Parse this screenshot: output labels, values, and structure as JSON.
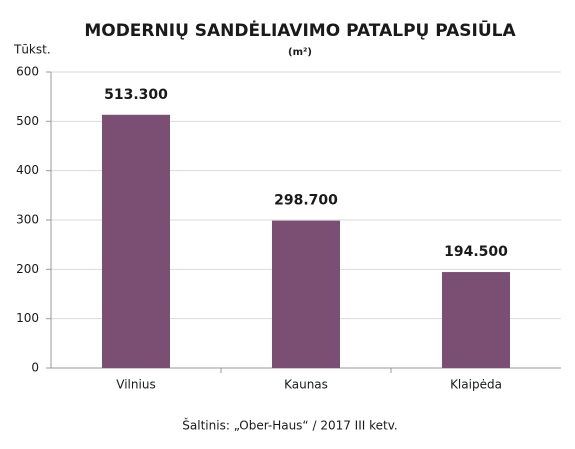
{
  "chart_data": {
    "type": "bar",
    "title": "MODERNIŲ SANDĖLIAVIMO PATALPŲ PASIŪLA",
    "subtitle": "(m²)",
    "y_axis_label": "Tūkst.",
    "source": "Šaltinis: „Ober-Haus“ / 2017 III ketv.",
    "categories": [
      "Vilnius",
      "Kaunas",
      "Klaipėda"
    ],
    "values": [
      513.3,
      298.7,
      194.5
    ],
    "value_labels": [
      "513.300",
      "298.700",
      "194.500"
    ],
    "color": "#7b4f74",
    "ylim": [
      0,
      600
    ],
    "yticks": [
      0,
      100,
      200,
      300,
      400,
      500,
      600
    ],
    "grid": true
  }
}
